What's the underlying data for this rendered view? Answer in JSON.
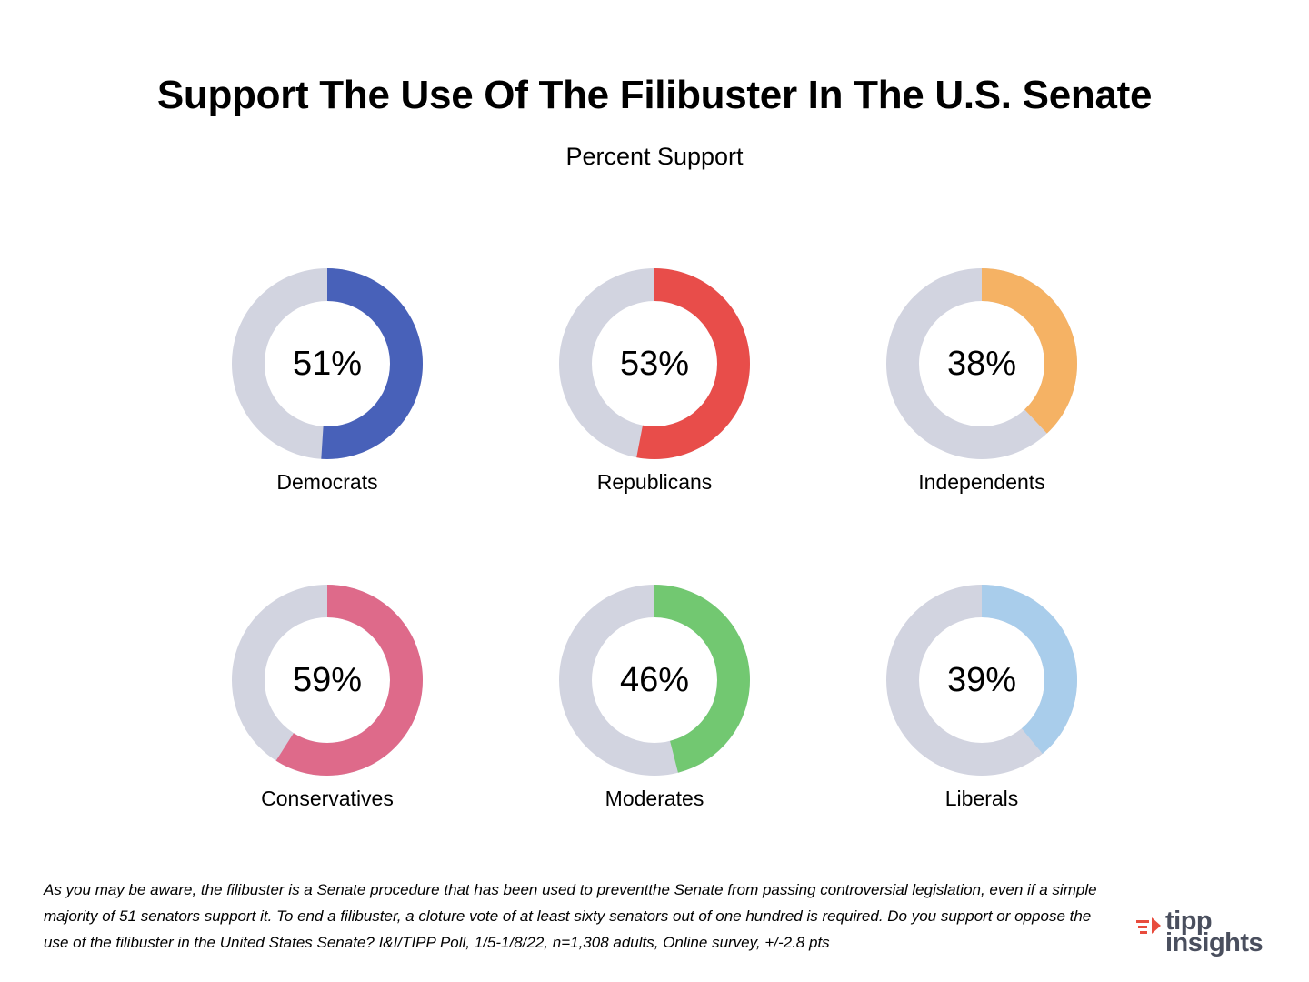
{
  "title": "Support The Use Of The Filibuster In The U.S. Senate",
  "subtitle": "Percent Support",
  "track_color": "#d2d4e0",
  "chart_data": [
    {
      "type": "pie",
      "label": "Democrats",
      "value": 51,
      "value_label": "51%",
      "color": "#4861b9"
    },
    {
      "type": "pie",
      "label": "Republicans",
      "value": 53,
      "value_label": "53%",
      "color": "#e84d4a"
    },
    {
      "type": "pie",
      "label": "Independents",
      "value": 38,
      "value_label": "38%",
      "color": "#f5b264"
    },
    {
      "type": "pie",
      "label": "Conservatives",
      "value": 59,
      "value_label": "59%",
      "color": "#de6a8a"
    },
    {
      "type": "pie",
      "label": "Moderates",
      "value": 46,
      "value_label": "46%",
      "color": "#72c871"
    },
    {
      "type": "pie",
      "label": "Liberals",
      "value": 39,
      "value_label": "39%",
      "color": "#a9cdeb"
    }
  ],
  "footnote": "As you may be aware, the filibuster is a Senate procedure that has been  used to preventthe Senate from passing controversial legislation, even if a simple majority of 51 senators support it.  To end a filibuster, a  cloture vote of at least sixty senators out of one hundred is required. Do you support or oppose the use of the filibuster in the United States  Senate? I&I/TIPP Poll, 1/5-1/8/22, n=1,308 adults, Online survey, +/-2.8 pts",
  "logo": {
    "line1": "tipp",
    "line2": "insights"
  }
}
